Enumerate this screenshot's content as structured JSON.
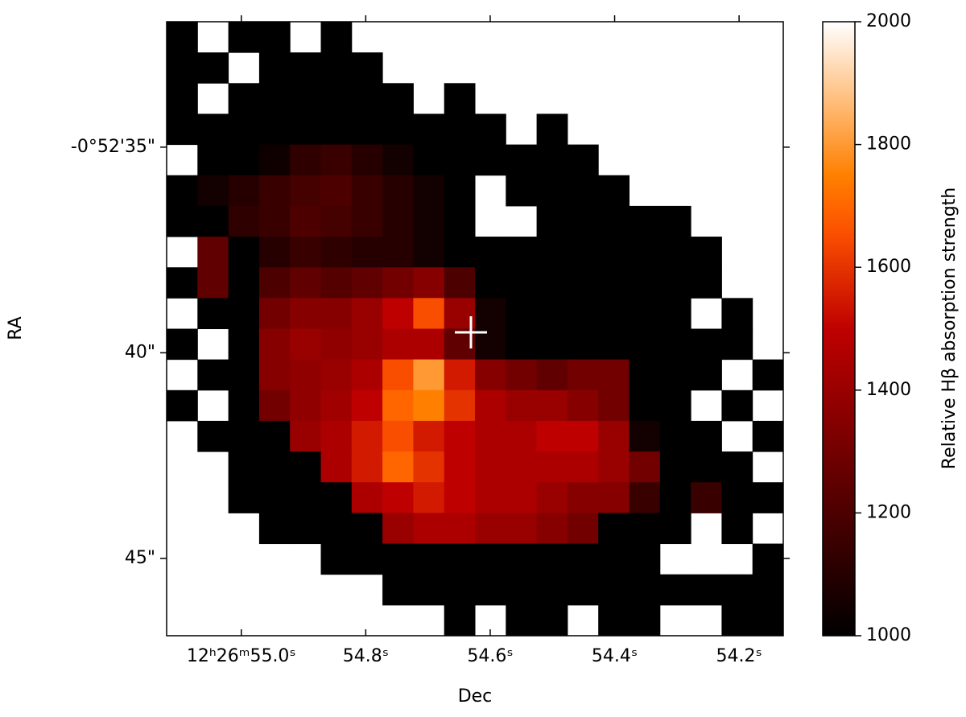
{
  "chart_data": {
    "type": "heatmap",
    "xlabel": "Dec",
    "ylabel": "RA",
    "colorbar_label": "Relative Hβ absorption strength",
    "colormap": "gist_heat",
    "xlim": [
      55.12,
      54.129
    ],
    "xticks": [
      {
        "value": 55.0,
        "label": "12ʰ26ᵐ55.0ˢ"
      },
      {
        "value": 54.8,
        "label": "54.8ˢ"
      },
      {
        "value": 54.6,
        "label": "54.6ˢ"
      },
      {
        "value": 54.4,
        "label": "54.4ˢ"
      },
      {
        "value": 54.2,
        "label": "54.2ˢ"
      }
    ],
    "ylim": [
      31.95,
      46.88
    ],
    "yticks": [
      {
        "value": 35,
        "label": "-0°52'35\""
      },
      {
        "value": 40,
        "label": "40\""
      },
      {
        "value": 45,
        "label": "45\""
      }
    ],
    "clim": [
      1000,
      2000
    ],
    "cticks": [
      1000,
      1200,
      1400,
      1600,
      1800,
      2000
    ],
    "z": [
      [
        1000,
        null,
        1000,
        1000,
        null,
        1000,
        null,
        null,
        null,
        null,
        null,
        null,
        null,
        null,
        null,
        null,
        null,
        null,
        null,
        null
      ],
      [
        1000,
        1000,
        null,
        1000,
        1000,
        1000,
        1000,
        null,
        null,
        null,
        null,
        null,
        null,
        null,
        null,
        null,
        null,
        null,
        null,
        null
      ],
      [
        1000,
        null,
        1000,
        1000,
        1000,
        1000,
        1000,
        1000,
        null,
        1000,
        null,
        null,
        null,
        null,
        null,
        null,
        null,
        null,
        null,
        null
      ],
      [
        1000,
        1000,
        1000,
        1000,
        1000,
        1000,
        1000,
        1000,
        1000,
        1000,
        1000,
        null,
        1000,
        null,
        null,
        null,
        null,
        null,
        null,
        null
      ],
      [
        null,
        1000,
        1000,
        1040,
        1120,
        1150,
        1100,
        1050,
        1000,
        1000,
        1000,
        1000,
        1000,
        1000,
        null,
        null,
        null,
        null,
        null,
        null
      ],
      [
        1000,
        1050,
        1100,
        1150,
        1180,
        1200,
        1150,
        1100,
        1050,
        1000,
        null,
        1000,
        1000,
        1000,
        1000,
        null,
        null,
        null,
        null,
        null
      ],
      [
        1000,
        1000,
        1120,
        1150,
        1200,
        1180,
        1150,
        1100,
        1050,
        1000,
        null,
        null,
        1000,
        1000,
        1000,
        1000,
        1000,
        null,
        null,
        null
      ],
      [
        null,
        1250,
        1000,
        1100,
        1150,
        1120,
        1100,
        1100,
        1050,
        1000,
        1000,
        1000,
        1000,
        1000,
        1000,
        1000,
        1000,
        1000,
        null,
        null
      ],
      [
        1000,
        1250,
        1000,
        1200,
        1250,
        1220,
        1250,
        1300,
        1350,
        1200,
        1000,
        1000,
        1000,
        1000,
        1000,
        1000,
        1000,
        1000,
        null,
        null
      ],
      [
        null,
        1000,
        1000,
        1300,
        1350,
        1350,
        1400,
        1500,
        1650,
        1400,
        1050,
        1000,
        1000,
        1000,
        1000,
        1000,
        1000,
        null,
        1000,
        null
      ],
      [
        1000,
        null,
        1000,
        1350,
        1400,
        1380,
        1400,
        1450,
        1450,
        1250,
        1050,
        1000,
        1000,
        1000,
        1000,
        1000,
        1000,
        1000,
        1000,
        null
      ],
      [
        null,
        1000,
        1000,
        1350,
        1380,
        1400,
        1450,
        1650,
        1800,
        1550,
        1350,
        1300,
        1250,
        1300,
        1300,
        1000,
        1000,
        1000,
        null,
        1000
      ],
      [
        1000,
        null,
        1000,
        1300,
        1380,
        1420,
        1500,
        1700,
        1750,
        1600,
        1450,
        1400,
        1400,
        1350,
        1300,
        1000,
        1000,
        null,
        1000,
        null
      ],
      [
        null,
        1000,
        1000,
        1000,
        1400,
        1450,
        1550,
        1650,
        1550,
        1500,
        1450,
        1450,
        1500,
        1500,
        1400,
        1050,
        1000,
        1000,
        null,
        1000
      ],
      [
        null,
        null,
        1000,
        1000,
        1000,
        1450,
        1550,
        1700,
        1600,
        1500,
        1450,
        1450,
        1450,
        1450,
        1400,
        1300,
        1000,
        1000,
        1000,
        null
      ],
      [
        null,
        null,
        1000,
        1000,
        1000,
        1000,
        1450,
        1500,
        1550,
        1500,
        1450,
        1450,
        1400,
        1350,
        1350,
        1150,
        1000,
        1150,
        1000,
        1000
      ],
      [
        null,
        null,
        null,
        1000,
        1000,
        1000,
        1000,
        1400,
        1450,
        1450,
        1400,
        1400,
        1350,
        1300,
        1000,
        1000,
        1000,
        null,
        1000,
        null
      ],
      [
        null,
        null,
        null,
        null,
        null,
        1000,
        1000,
        1000,
        1000,
        1000,
        1000,
        1000,
        1000,
        1000,
        1000,
        1000,
        null,
        null,
        null,
        1000
      ],
      [
        null,
        null,
        null,
        null,
        null,
        null,
        null,
        1000,
        1000,
        1000,
        1000,
        1000,
        1000,
        1000,
        1000,
        1000,
        1000,
        1000,
        1000,
        1000
      ],
      [
        null,
        null,
        null,
        null,
        null,
        null,
        null,
        null,
        null,
        1000,
        null,
        1000,
        1000,
        null,
        1000,
        1000,
        null,
        null,
        1000,
        1000
      ]
    ]
  }
}
